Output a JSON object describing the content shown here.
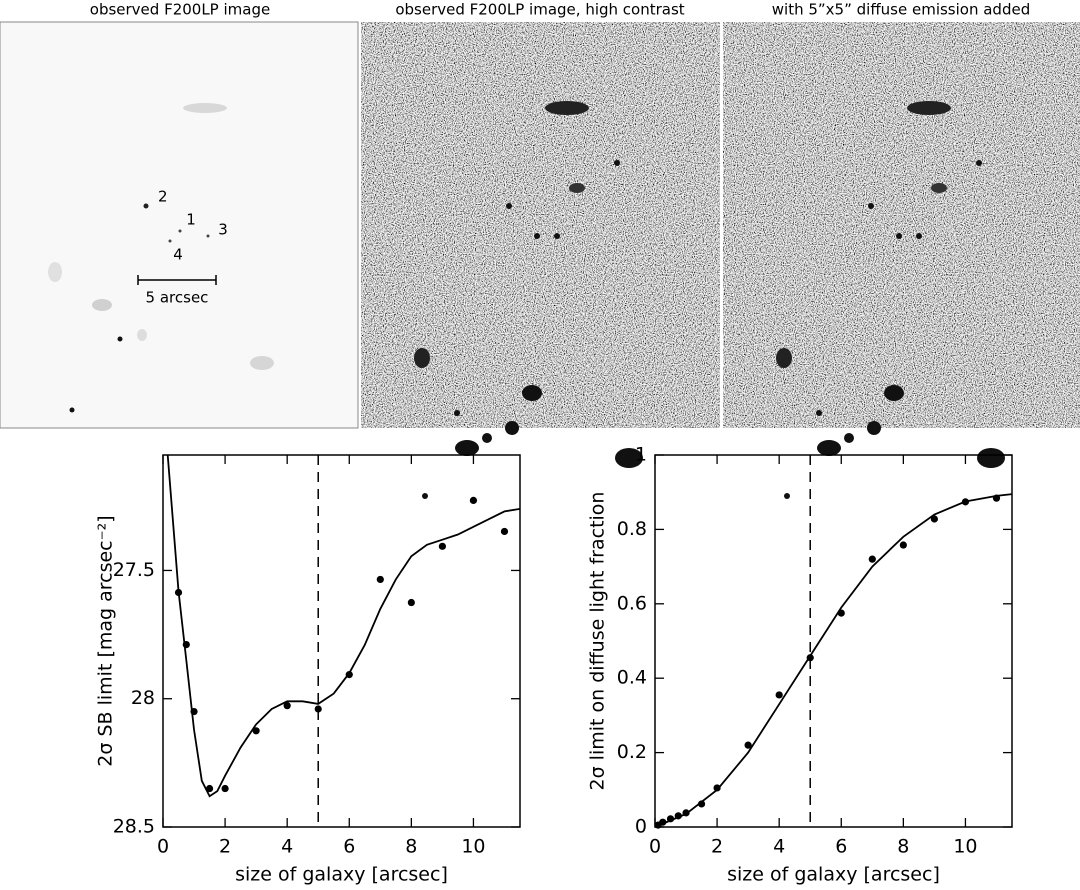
{
  "panels": [
    {
      "title": "observed F200LP image",
      "labels": [
        "2",
        "1",
        "3",
        "4",
        "5 arcsec"
      ]
    },
    {
      "title": "observed F200LP image, high contrast"
    },
    {
      "title": "with 5”x5” diffuse emission added"
    }
  ],
  "chart_data": [
    {
      "type": "scatter",
      "xlabel": "size of galaxy [arcsec]",
      "ylabel": "2σ SB limit [mag arcsec⁻²]",
      "xlim": [
        0,
        11.5
      ],
      "ylim": [
        28.5,
        27.05
      ],
      "xticks": [
        0,
        2,
        4,
        6,
        8,
        10
      ],
      "yticks": [
        27.5,
        28,
        28.5
      ],
      "vline": 5,
      "series": [
        {
          "style": "points",
          "color": "#000000",
          "x": [
            0.5,
            0.75,
            1,
            1.5,
            2,
            3,
            4,
            5,
            6,
            7,
            8,
            9,
            10,
            11
          ],
          "values": [
            27.586,
            27.789,
            28.05,
            28.35,
            28.35,
            28.125,
            28.027,
            28.04,
            27.906,
            27.535,
            27.625,
            27.406,
            27.227,
            27.348
          ]
        },
        {
          "style": "line",
          "color": "#000000",
          "x": [
            0.15,
            0.5,
            0.75,
            1,
            1.25,
            1.5,
            1.75,
            2,
            2.5,
            3,
            3.5,
            4,
            4.5,
            5,
            5.5,
            6,
            6.5,
            7,
            7.5,
            8,
            8.5,
            9,
            9.5,
            10,
            10.5,
            11,
            11.5
          ],
          "values": [
            27.05,
            27.58,
            27.85,
            28.12,
            28.32,
            28.38,
            28.36,
            28.3,
            28.19,
            28.1,
            28.04,
            28.01,
            28.01,
            28.02,
            27.98,
            27.9,
            27.79,
            27.65,
            27.535,
            27.445,
            27.4,
            27.38,
            27.36,
            27.33,
            27.3,
            27.27,
            27.26
          ]
        }
      ]
    },
    {
      "type": "scatter",
      "xlabel": "size of galaxy [arcsec]",
      "ylabel": "2σ limit on diffuse light fraction",
      "xlim": [
        0,
        11.5
      ],
      "ylim": [
        0,
        1
      ],
      "xticks": [
        0,
        2,
        4,
        6,
        8,
        10
      ],
      "yticks": [
        0,
        0.2,
        0.4,
        0.6,
        0.8,
        1
      ],
      "vline": 5,
      "series": [
        {
          "style": "points",
          "color": "#000000",
          "x": [
            0.1,
            0.25,
            0.5,
            0.75,
            1,
            1.5,
            2,
            3,
            4,
            5,
            6,
            7,
            8,
            9,
            10,
            11
          ],
          "values": [
            0.005,
            0.013,
            0.022,
            0.03,
            0.038,
            0.062,
            0.105,
            0.22,
            0.355,
            0.455,
            0.575,
            0.72,
            0.758,
            0.828,
            0.874,
            0.884
          ]
        },
        {
          "style": "line",
          "color": "#000000",
          "x": [
            0,
            1,
            2,
            3,
            4,
            5,
            6,
            7,
            8,
            9,
            10,
            11,
            11.5
          ],
          "values": [
            0,
            0.035,
            0.1,
            0.2,
            0.33,
            0.46,
            0.59,
            0.7,
            0.78,
            0.84,
            0.875,
            0.89,
            0.895
          ]
        }
      ]
    }
  ]
}
